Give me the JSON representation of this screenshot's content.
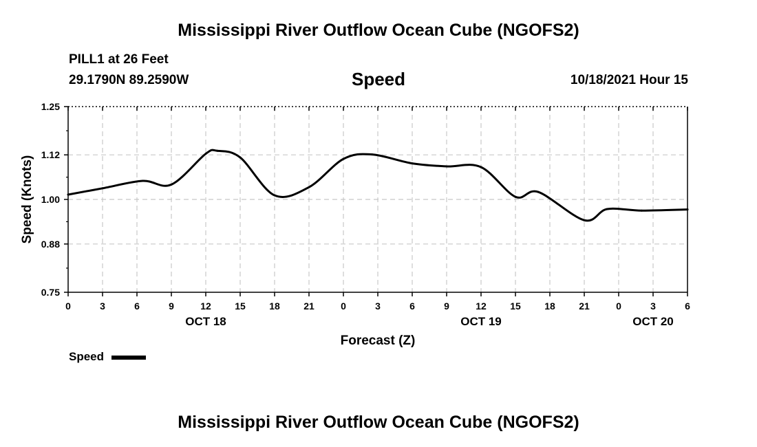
{
  "header": {
    "title": "Mississippi River Outflow Ocean Cube (NGOFS2)",
    "station": "PILL1 at 26 Feet",
    "coords": "29.1790N  89.2590W",
    "heading": "Speed",
    "timestamp": "10/18/2021 Hour 15"
  },
  "footer": {
    "title": "Mississippi River Outflow Ocean Cube (NGOFS2)"
  },
  "chart_data": {
    "type": "line",
    "title": "Speed",
    "xlabel": "Forecast (Z)",
    "ylabel": "Speed (Knots)",
    "xlim": [
      0,
      54
    ],
    "ylim": [
      0.75,
      1.25
    ],
    "yticks": [
      0.75,
      0.88,
      1.0,
      1.12,
      1.25
    ],
    "ytick_labels": [
      "0.75",
      "0.88",
      "1.00",
      "1.12",
      "1.25"
    ],
    "xticks": [
      0,
      3,
      6,
      9,
      12,
      15,
      18,
      21,
      24,
      27,
      30,
      33,
      36,
      39,
      42,
      45,
      48,
      51,
      54
    ],
    "xtick_labels": [
      "0",
      "3",
      "6",
      "9",
      "12",
      "15",
      "18",
      "21",
      "0",
      "3",
      "6",
      "9",
      "12",
      "15",
      "18",
      "21",
      "0",
      "3",
      "6"
    ],
    "date_labels": [
      {
        "x": 12,
        "label": "OCT 18"
      },
      {
        "x": 36,
        "label": "OCT 19"
      },
      {
        "x": 51,
        "label": "OCT 20"
      }
    ],
    "grid": true,
    "legend": "bottom-left",
    "series": [
      {
        "name": "Speed",
        "color": "#000000",
        "x": [
          0,
          3,
          6.5,
          9,
          12,
          13,
          15,
          18,
          21,
          24,
          26.5,
          30,
          33,
          36,
          39,
          41,
          45,
          47,
          50,
          54
        ],
        "values": [
          1.013,
          1.03,
          1.05,
          1.04,
          1.123,
          1.131,
          1.113,
          1.011,
          1.033,
          1.109,
          1.121,
          1.097,
          1.089,
          1.087,
          1.007,
          1.02,
          0.944,
          0.974,
          0.97,
          0.973
        ]
      }
    ]
  }
}
